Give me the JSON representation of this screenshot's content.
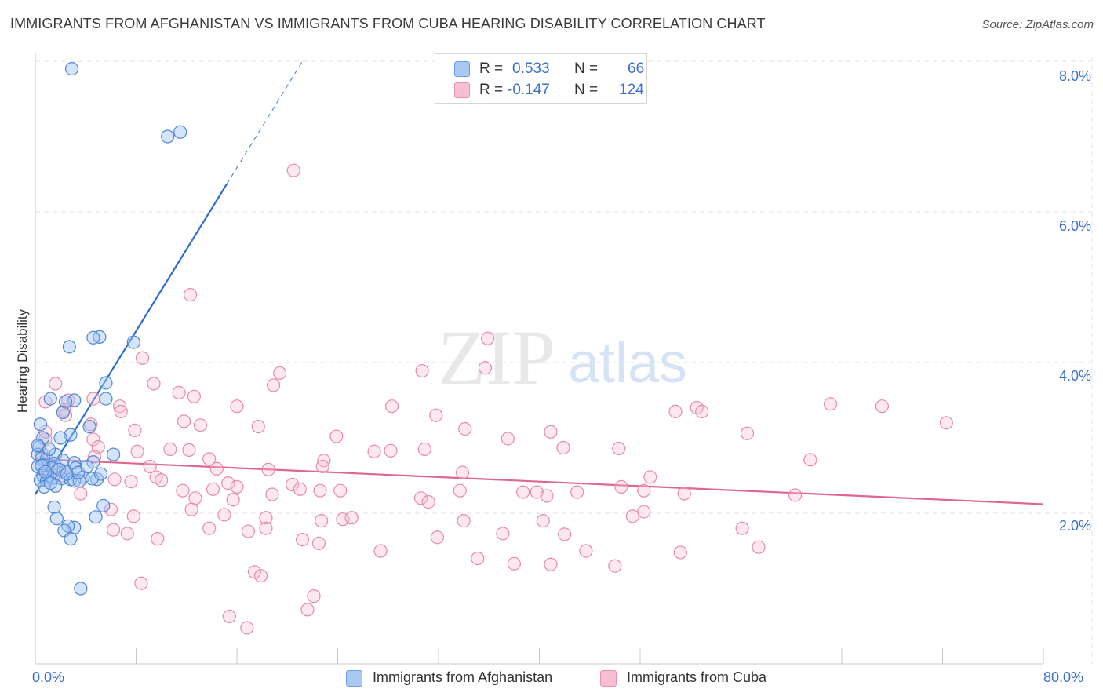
{
  "title": "IMMIGRANTS FROM AFGHANISTAN VS IMMIGRANTS FROM CUBA HEARING DISABILITY CORRELATION CHART",
  "source": "Source: ZipAtlas.com",
  "watermark": {
    "zip": "ZIP",
    "atlas": "atlas"
  },
  "legend": {
    "rows": [
      {
        "r_label": "R =",
        "r_value": "0.533",
        "n_label": "N =",
        "n_value": "66",
        "color": "#a9c8f2",
        "border": "#6c9ee6"
      },
      {
        "r_label": "R =",
        "r_value": "-0.147",
        "n_label": "N =",
        "n_value": "124",
        "color": "#f8bfd2",
        "border": "#ec8fb0"
      }
    ]
  },
  "bottom_legend": [
    {
      "label": "Immigrants from Afghanistan",
      "color": "#a9c8f2",
      "border": "#6c9ee6"
    },
    {
      "label": "Immigrants from Cuba",
      "color": "#f8bfd2",
      "border": "#ec8fb0"
    }
  ],
  "colors": {
    "afghanistan_fill": "rgba(160,196,242,0.45)",
    "afghanistan_stroke": "#4f86d6",
    "afghanistan_line": "#2a6ed0",
    "cuba_fill": "rgba(248,190,210,0.35)",
    "cuba_stroke": "#e68aaa",
    "cuba_line": "#e06690",
    "grid": "#e2e2e2",
    "tick_label": "#3d6fd0"
  },
  "chart_data": {
    "type": "scatter",
    "title": "IMMIGRANTS FROM AFGHANISTAN VS IMMIGRANTS FROM CUBA HEARING DISABILITY CORRELATION CHART",
    "xlabel": "",
    "ylabel": "Hearing Disability",
    "xlim": [
      0,
      80
    ],
    "ylim": [
      0,
      8
    ],
    "x_tick_labels": [
      "0.0%",
      "80.0%"
    ],
    "y_ticks": [
      2,
      4,
      6,
      8
    ],
    "y_tick_labels": [
      "2.0%",
      "4.0%",
      "6.0%",
      "8.0%"
    ],
    "series": [
      {
        "name": "Immigrants from Afghanistan",
        "r": 0.533,
        "n": 66,
        "trend": {
          "x0": 0,
          "y0": 2.25,
          "x1": 15.2,
          "y1": 6.37,
          "dash_x1": 21.2,
          "dash_y1": 8.0
        },
        "points": [
          [
            2.9,
            7.9
          ],
          [
            10.5,
            7.0
          ],
          [
            11.5,
            7.06
          ],
          [
            5.1,
            4.34
          ],
          [
            4.6,
            4.33
          ],
          [
            2.7,
            4.21
          ],
          [
            7.8,
            4.27
          ],
          [
            5.6,
            3.73
          ],
          [
            3.1,
            3.5
          ],
          [
            1.2,
            3.52
          ],
          [
            2.4,
            3.48
          ],
          [
            5.6,
            3.52
          ],
          [
            2.2,
            3.34
          ],
          [
            4.3,
            3.15
          ],
          [
            2.8,
            3.04
          ],
          [
            2.0,
            3.0
          ],
          [
            0.4,
            3.18
          ],
          [
            0.6,
            3.0
          ],
          [
            0.3,
            2.88
          ],
          [
            6.2,
            2.78
          ],
          [
            0.2,
            2.78
          ],
          [
            0.5,
            2.73
          ],
          [
            0.9,
            2.72
          ],
          [
            1.6,
            2.78
          ],
          [
            2.2,
            2.7
          ],
          [
            3.1,
            2.67
          ],
          [
            1.5,
            2.66
          ],
          [
            0.2,
            2.62
          ],
          [
            0.7,
            2.64
          ],
          [
            1.3,
            2.6
          ],
          [
            4.6,
            2.68
          ],
          [
            3.2,
            2.6
          ],
          [
            2.4,
            2.55
          ],
          [
            0.6,
            2.5
          ],
          [
            1.0,
            2.48
          ],
          [
            1.4,
            2.47
          ],
          [
            2.1,
            2.46
          ],
          [
            3.8,
            2.48
          ],
          [
            0.4,
            2.44
          ],
          [
            0.9,
            2.43
          ],
          [
            2.8,
            2.45
          ],
          [
            4.9,
            2.45
          ],
          [
            3.1,
            2.43
          ],
          [
            3.5,
            2.43
          ],
          [
            0.7,
            2.35
          ],
          [
            1.6,
            2.36
          ],
          [
            4.5,
            2.46
          ],
          [
            0.5,
            2.63
          ],
          [
            1.9,
            2.58
          ],
          [
            3.4,
            2.54
          ],
          [
            5.2,
            2.52
          ],
          [
            1.2,
            2.4
          ],
          [
            2.5,
            2.52
          ],
          [
            1.5,
            2.08
          ],
          [
            3.1,
            1.81
          ],
          [
            4.8,
            1.95
          ],
          [
            1.7,
            1.93
          ],
          [
            2.6,
            1.83
          ],
          [
            2.3,
            1.77
          ],
          [
            2.8,
            1.66
          ],
          [
            5.4,
            2.1
          ],
          [
            3.6,
            1.0
          ],
          [
            0.2,
            2.9
          ],
          [
            1.1,
            2.85
          ],
          [
            0.8,
            2.55
          ],
          [
            4.1,
            2.62
          ]
        ]
      },
      {
        "name": "Immigrants from Cuba",
        "r": -0.147,
        "n": 124,
        "trend": {
          "x0": 0,
          "y0": 2.72,
          "x1": 80,
          "y1": 2.12
        },
        "points": [
          [
            20.5,
            6.55
          ],
          [
            12.3,
            4.9
          ],
          [
            35.9,
            4.32
          ],
          [
            8.5,
            4.06
          ],
          [
            30.7,
            3.89
          ],
          [
            35.7,
            3.93
          ],
          [
            19.4,
            3.86
          ],
          [
            18.9,
            3.7
          ],
          [
            9.4,
            3.72
          ],
          [
            1.6,
            3.72
          ],
          [
            11.4,
            3.6
          ],
          [
            12.6,
            3.55
          ],
          [
            0.8,
            3.48
          ],
          [
            2.6,
            3.5
          ],
          [
            4.6,
            3.52
          ],
          [
            6.7,
            3.42
          ],
          [
            16.0,
            3.42
          ],
          [
            28.3,
            3.42
          ],
          [
            52.5,
            3.4
          ],
          [
            52.9,
            3.35
          ],
          [
            63.1,
            3.45
          ],
          [
            67.2,
            3.42
          ],
          [
            72.3,
            3.2
          ],
          [
            2.3,
            3.37
          ],
          [
            2.4,
            3.3
          ],
          [
            6.8,
            3.35
          ],
          [
            11.8,
            3.22
          ],
          [
            13.1,
            3.17
          ],
          [
            17.7,
            3.15
          ],
          [
            31.8,
            3.3
          ],
          [
            34.1,
            3.12
          ],
          [
            50.8,
            3.35
          ],
          [
            56.5,
            3.06
          ],
          [
            40.9,
            3.08
          ],
          [
            0.8,
            2.98
          ],
          [
            4.6,
            2.98
          ],
          [
            7.9,
            3.1
          ],
          [
            23.9,
            3.02
          ],
          [
            37.5,
            2.99
          ],
          [
            0.8,
            3.08
          ],
          [
            4.4,
            3.18
          ],
          [
            5.0,
            2.88
          ],
          [
            8.1,
            2.82
          ],
          [
            10.7,
            2.85
          ],
          [
            12.2,
            2.84
          ],
          [
            26.9,
            2.82
          ],
          [
            28.2,
            2.83
          ],
          [
            30.9,
            2.85
          ],
          [
            41.9,
            2.87
          ],
          [
            46.3,
            2.86
          ],
          [
            61.5,
            2.71
          ],
          [
            0.5,
            2.8
          ],
          [
            4.7,
            2.75
          ],
          [
            13.8,
            2.72
          ],
          [
            22.9,
            2.7
          ],
          [
            9.1,
            2.62
          ],
          [
            14.4,
            2.59
          ],
          [
            18.5,
            2.58
          ],
          [
            22.8,
            2.62
          ],
          [
            33.9,
            2.54
          ],
          [
            48.8,
            2.48
          ],
          [
            2.2,
            2.5
          ],
          [
            6.3,
            2.45
          ],
          [
            9.6,
            2.48
          ],
          [
            10.0,
            2.44
          ],
          [
            15.3,
            2.4
          ],
          [
            16.0,
            2.35
          ],
          [
            20.4,
            2.38
          ],
          [
            22.6,
            2.3
          ],
          [
            24.2,
            2.3
          ],
          [
            33.7,
            2.3
          ],
          [
            38.7,
            2.28
          ],
          [
            43.0,
            2.28
          ],
          [
            46.5,
            2.35
          ],
          [
            48.3,
            2.3
          ],
          [
            51.5,
            2.26
          ],
          [
            60.3,
            2.24
          ],
          [
            14.1,
            2.32
          ],
          [
            7.6,
            2.42
          ],
          [
            11.7,
            2.3
          ],
          [
            18.8,
            2.25
          ],
          [
            21.0,
            2.32
          ],
          [
            30.6,
            2.2
          ],
          [
            31.2,
            2.15
          ],
          [
            39.8,
            2.28
          ],
          [
            40.6,
            2.23
          ],
          [
            12.7,
            2.2
          ],
          [
            15.7,
            2.18
          ],
          [
            3.6,
            2.26
          ],
          [
            6.0,
            2.05
          ],
          [
            7.8,
            1.96
          ],
          [
            12.4,
            2.05
          ],
          [
            15.0,
            1.98
          ],
          [
            18.3,
            1.94
          ],
          [
            22.7,
            1.9
          ],
          [
            24.4,
            1.92
          ],
          [
            25.1,
            1.94
          ],
          [
            34.0,
            1.9
          ],
          [
            47.4,
            1.96
          ],
          [
            40.3,
            1.9
          ],
          [
            56.1,
            1.8
          ],
          [
            48.3,
            2.02
          ],
          [
            6.2,
            1.78
          ],
          [
            7.3,
            1.73
          ],
          [
            9.7,
            1.66
          ],
          [
            13.8,
            1.8
          ],
          [
            16.9,
            1.76
          ],
          [
            18.3,
            1.8
          ],
          [
            21.2,
            1.65
          ],
          [
            22.5,
            1.6
          ],
          [
            27.4,
            1.5
          ],
          [
            31.9,
            1.68
          ],
          [
            37.1,
            1.73
          ],
          [
            42.0,
            1.72
          ],
          [
            43.7,
            1.5
          ],
          [
            46.0,
            1.3
          ],
          [
            51.2,
            1.48
          ],
          [
            57.4,
            1.55
          ],
          [
            35.1,
            1.4
          ],
          [
            40.9,
            1.32
          ],
          [
            38.0,
            1.33
          ],
          [
            8.4,
            1.07
          ],
          [
            17.4,
            1.22
          ],
          [
            17.9,
            1.17
          ],
          [
            22.1,
            0.9
          ],
          [
            21.6,
            0.72
          ],
          [
            15.4,
            0.63
          ],
          [
            16.8,
            0.48
          ]
        ]
      }
    ]
  }
}
